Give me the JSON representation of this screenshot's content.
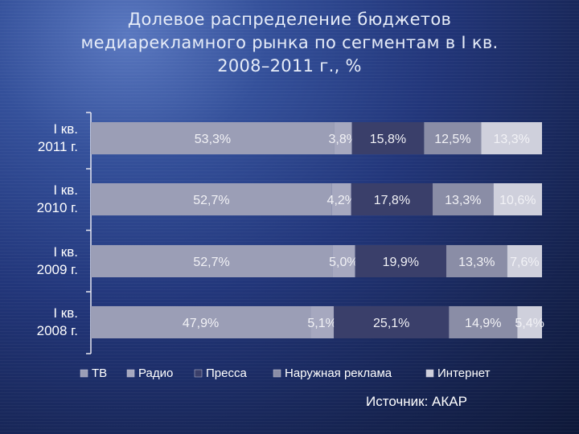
{
  "title_lines": [
    "Долевое распределение бюджетов",
    "медиарекламного рынка по сегментам в I кв.",
    "2008–2011 г., %"
  ],
  "source": "Источник: АКАР",
  "colors": {
    "tv": "#9b9eb6",
    "radio": "#a6a8bf",
    "press": "#3a3f6a",
    "outdoor": "#8a8da6",
    "internet": "#cfd0dc",
    "axis": "#e8e8f0",
    "label_text": "#f2f2f6"
  },
  "chart_data": {
    "type": "bar",
    "orientation": "horizontal",
    "stacked": true,
    "percent_stacked": true,
    "categories": [
      "I кв.\n2011 г.",
      "I кв.\n2010 г.",
      "I кв.\n2009 г.",
      "I кв.\n2008 г."
    ],
    "series": [
      {
        "name": "ТВ",
        "values": [
          53.3,
          52.7,
          52.7,
          47.9
        ],
        "labels": [
          "53,3%",
          "52,7%",
          "52,7%",
          "47,9%"
        ]
      },
      {
        "name": "Радио",
        "values": [
          3.8,
          4.2,
          5.0,
          5.1
        ],
        "labels": [
          "3,8%",
          "4,2%",
          "5,0%",
          "5,1%"
        ]
      },
      {
        "name": "Пресса",
        "values": [
          15.8,
          17.8,
          19.9,
          25.1
        ],
        "labels": [
          "15,8%",
          "17,8%",
          "19,9%",
          "25,1%"
        ]
      },
      {
        "name": "Наружная реклама",
        "values": [
          12.5,
          13.3,
          13.3,
          14.9
        ],
        "labels": [
          "12,5%",
          "13,3%",
          "13,3%",
          "14,9%"
        ]
      },
      {
        "name": "Интернет",
        "values": [
          13.3,
          10.6,
          7.6,
          5.4
        ],
        "labels": [
          "13,3%",
          "10,6%",
          "7,6%",
          "5,4%"
        ]
      }
    ],
    "legend_position": "bottom",
    "grid": false
  }
}
